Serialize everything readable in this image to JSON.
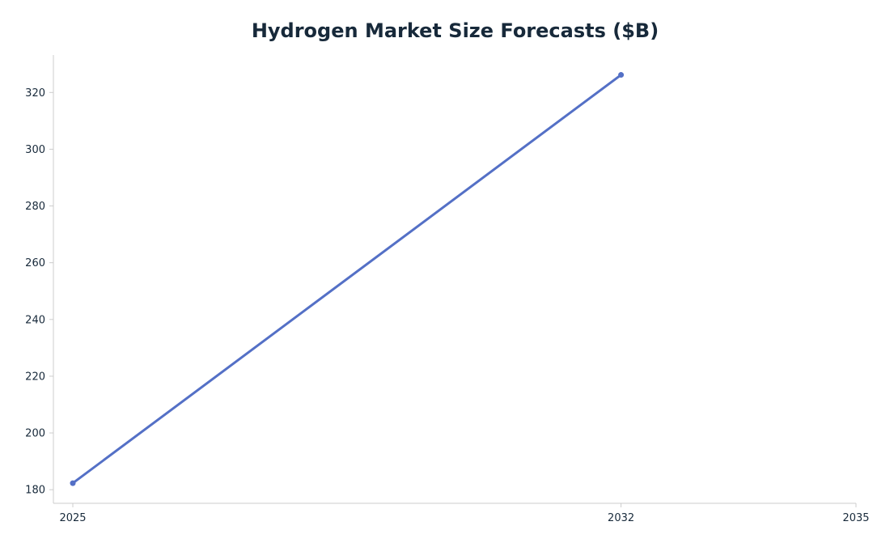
{
  "chart_data": {
    "type": "line",
    "title": "Hydrogen Market Size Forecasts ($B)",
    "xlabel": "",
    "ylabel": "",
    "x_ticks": [
      2025,
      2032,
      2035
    ],
    "y_ticks": [
      180,
      200,
      220,
      240,
      260,
      280,
      300,
      320
    ],
    "xlim": [
      2025,
      2035
    ],
    "ylim": [
      175.2,
      333.2
    ],
    "grid": false,
    "series": [
      {
        "color": "#5470c6",
        "x": [
          2025,
          2032
        ],
        "y": [
          182.3,
          326.2
        ]
      }
    ]
  }
}
